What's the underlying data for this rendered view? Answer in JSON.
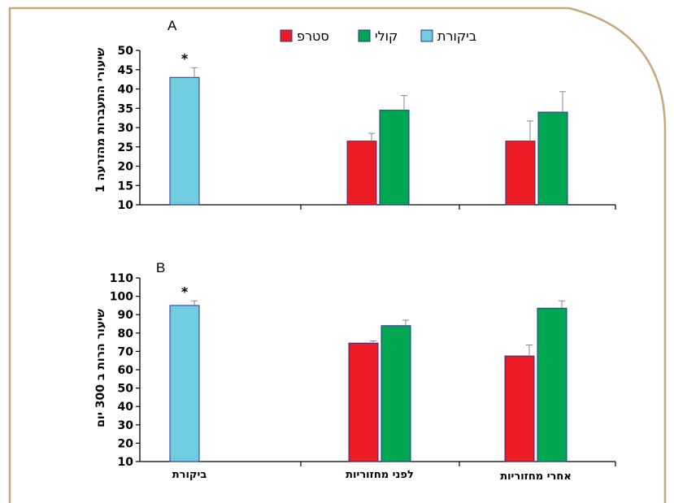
{
  "colors": {
    "frame": "#c9a87a",
    "control": "#70cde0",
    "cold": "#00a651",
    "strap": "#ed1c24",
    "bar_edge": "#2e3192"
  },
  "legend": [
    {
      "key": "control",
      "label": "ביקורת"
    },
    {
      "key": "cold",
      "label": "קולי"
    },
    {
      "key": "strap",
      "label": "סטרפ"
    }
  ],
  "categories": [
    "ביקורת",
    "לפני מחזוריות",
    "אחרי מחזוריות"
  ],
  "chart_data": [
    {
      "type": "bar",
      "panel": "A",
      "ylabel": "שיעורי התעברות מהזרעה 1",
      "ylim": [
        10,
        50
      ],
      "yticks": [
        10,
        15,
        20,
        25,
        30,
        35,
        40,
        45,
        50
      ],
      "bars": [
        {
          "category": "ביקורת",
          "series": "control",
          "value": 43,
          "error": 2.5,
          "star": "*"
        },
        {
          "category": "לפני מחזוריות",
          "series": "strap",
          "value": 26.5,
          "error": 2
        },
        {
          "category": "לפני מחזוריות",
          "series": "cold",
          "value": 34.5,
          "error": 3.8
        },
        {
          "category": "אחרי מחזוריות",
          "series": "strap",
          "value": 26.5,
          "error": 5.2
        },
        {
          "category": "אחרי מחזוריות",
          "series": "cold",
          "value": 34,
          "error": 5.3
        }
      ]
    },
    {
      "type": "bar",
      "panel": "B",
      "ylabel": "שיעור הרות ב 300 יום",
      "ylim": [
        10,
        110
      ],
      "yticks": [
        10,
        20,
        30,
        40,
        50,
        60,
        70,
        80,
        90,
        100,
        110
      ],
      "bars": [
        {
          "category": "ביקורת",
          "series": "control",
          "value": 95,
          "error": 2.5,
          "star": "*"
        },
        {
          "category": "לפני מחזוריות",
          "series": "strap",
          "value": 74.5,
          "error": 1.2
        },
        {
          "category": "לפני מחזוריות",
          "series": "cold",
          "value": 84,
          "error": 3
        },
        {
          "category": "אחרי מחזוריות",
          "series": "strap",
          "value": 67.5,
          "error": 6
        },
        {
          "category": "אחרי מחזוריות",
          "series": "cold",
          "value": 93.5,
          "error": 4
        }
      ]
    }
  ]
}
